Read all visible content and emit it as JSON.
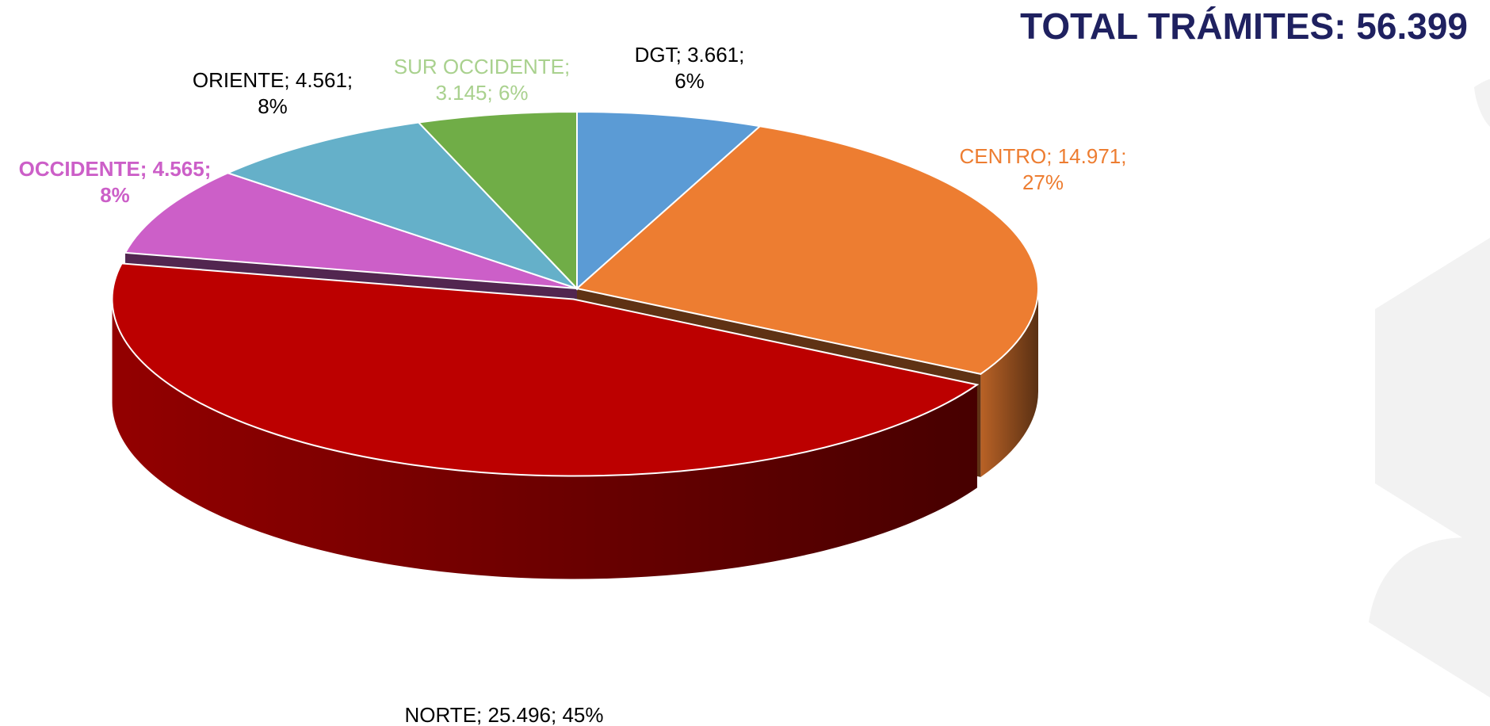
{
  "chart_data": {
    "type": "pie3d",
    "title": "TOTAL TRÁMITES: 56.399",
    "categories": [
      "DGT",
      "CENTRO",
      "NORTE",
      "OCCIDENTE",
      "ORIENTE",
      "SUR OCCIDENTE"
    ],
    "values": [
      3661,
      14971,
      25496,
      4565,
      4561,
      3145
    ],
    "value_labels": [
      "DGT; 3.661; 6%",
      "CENTRO; 14.971; 27%",
      "NORTE; 25.496; 45%",
      "OCCIDENTE; 4.565; 8%",
      "ORIENTE; 4.561; 8%",
      "SUR OCCIDENTE; 3.145; 6%"
    ],
    "colors": [
      "#5b9bd5",
      "#ed7d31",
      "#bc0000",
      "#cc5fc8",
      "#65b0c9",
      "#70ad47"
    ],
    "label_colors": [
      "#000000",
      "#ed7d31",
      "#000000",
      "#cc5fc8",
      "#000000",
      "#a9d18e"
    ],
    "exploded": [
      "NORTE"
    ]
  }
}
